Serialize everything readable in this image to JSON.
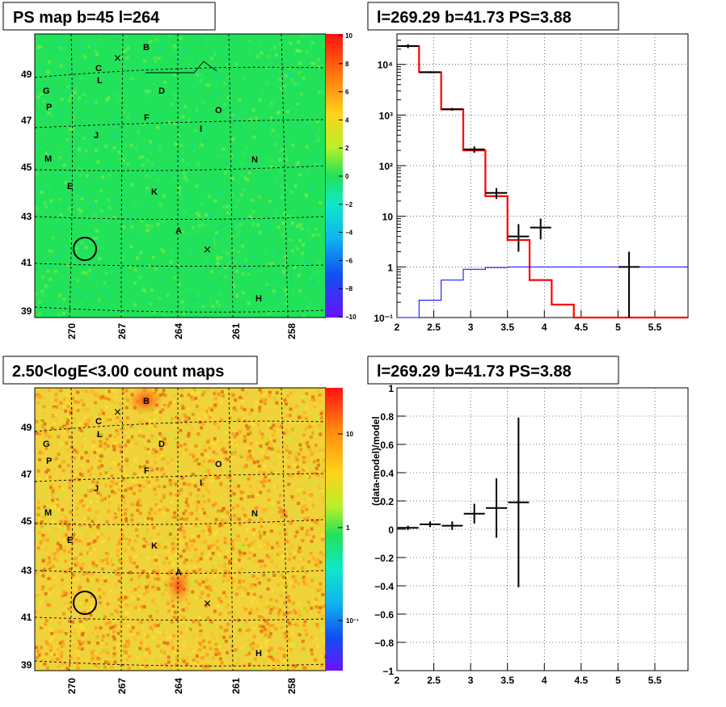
{
  "panels": {
    "top_left_title": "PS map b=45 l=264",
    "top_right_title": "l=269.29 b=41.73 PS=3.88",
    "bottom_left_title": "2.50<logE<3.00 count maps",
    "bottom_right_title": "l=269.29 b=41.73 PS=3.88"
  },
  "maps": {
    "lon_ticks": [
      "270",
      "267",
      "264",
      "261",
      "258"
    ],
    "lat_ticks": [
      "49",
      "47",
      "45",
      "43",
      "41",
      "39"
    ],
    "sources": [
      "B",
      "C",
      "L",
      "G",
      "P",
      "D",
      "O",
      "F",
      "I",
      "J",
      "M",
      "N",
      "E",
      "K",
      "A",
      "H"
    ],
    "ps_colorbar_ticks": [
      "10",
      "8",
      "6",
      "4",
      "2",
      "0",
      "−2",
      "−4",
      "−6",
      "−8",
      "−10"
    ],
    "count_colorbar_ticks": [
      "10",
      "1",
      "10⁻¹"
    ],
    "colors": {
      "ps_map_bg": "#22e25a",
      "count_map_bg": "#f0d23a"
    }
  },
  "chart_data": [
    {
      "type": "line",
      "title": "l=269.29 b=41.73 PS=3.88",
      "log_y": true,
      "xlim": [
        2,
        5.95
      ],
      "ylim": [
        0.1,
        40000
      ],
      "x_ticks": [
        "2",
        "2.5",
        "3",
        "3.5",
        "4",
        "4.5",
        "5",
        "5.5"
      ],
      "y_ticks": [
        "10⁻¹",
        "1",
        "10",
        "10²",
        "10³",
        "10⁴"
      ],
      "bin_edges": [
        2.0,
        2.3,
        2.6,
        2.9,
        3.2,
        3.5,
        3.8,
        4.1,
        4.4,
        4.7,
        5.0,
        5.3,
        5.95
      ],
      "series": [
        {
          "style": "step",
          "color": "#ff0000",
          "values": [
            23000,
            7000,
            1300,
            200,
            25,
            3.4,
            0.55,
            0.18,
            0.06,
            0.06,
            0.06,
            0.06
          ]
        },
        {
          "style": "step",
          "color": "#0000ff",
          "values": [
            0.05,
            0.22,
            0.55,
            0.9,
            0.97,
            1.0,
            1.0,
            1.0,
            1.0,
            1.0,
            1.0,
            1.0
          ]
        },
        {
          "style": "points",
          "color": "#000000",
          "x": [
            2.15,
            2.45,
            2.75,
            3.05,
            3.35,
            3.65,
            3.95,
            5.15
          ],
          "y": [
            23000,
            7000,
            1300,
            210,
            29,
            4,
            6,
            1
          ],
          "ylo": [
            21000,
            6700,
            1220,
            180,
            22,
            2,
            3.5,
            0.05
          ],
          "yhi": [
            25000,
            7300,
            1380,
            240,
            36,
            7,
            9,
            2
          ]
        }
      ]
    },
    {
      "type": "scatter",
      "title": "l=269.29 b=41.73 PS=3.88",
      "ylabel": "(data-model)/model",
      "xlim": [
        2,
        5.95
      ],
      "ylim": [
        -1,
        1
      ],
      "x_ticks": [
        "2",
        "2.5",
        "3",
        "3.5",
        "4",
        "4.5",
        "5",
        "5.5"
      ],
      "y_ticks": [
        "1",
        "0.8",
        "0.6",
        "0.4",
        "0.2",
        "0",
        "−0.2",
        "−0.4",
        "−0.6",
        "−0.8",
        "−1"
      ],
      "series": [
        {
          "color": "#000000",
          "x": [
            2.15,
            2.45,
            2.75,
            3.05,
            3.35,
            3.65
          ],
          "y": [
            0.01,
            0.035,
            0.025,
            0.11,
            0.15,
            0.19
          ],
          "yerr": [
            0.015,
            0.02,
            0.03,
            0.07,
            0.21,
            0.6
          ]
        }
      ]
    }
  ]
}
